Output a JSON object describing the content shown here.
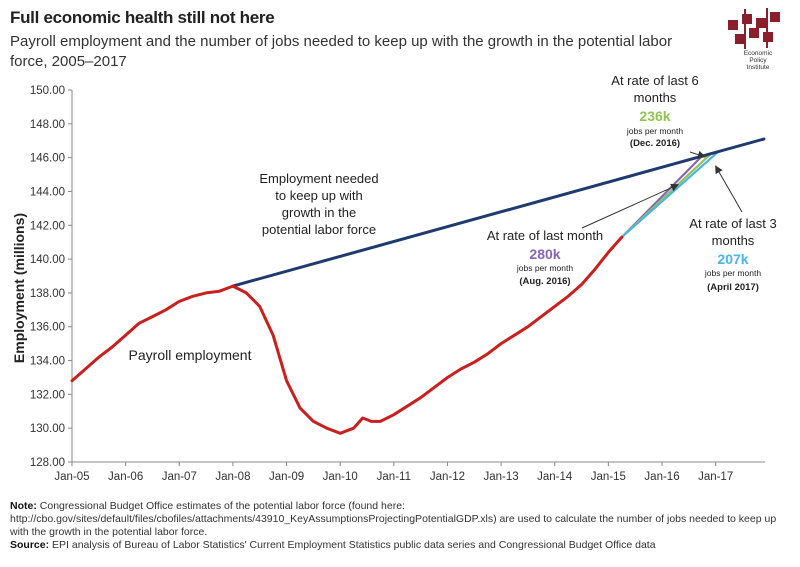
{
  "header": {
    "title": "Full economic health still not here",
    "subtitle": "Payroll employment and the number of jobs needed to keep up with the growth in the potential labor force, 2005–2017",
    "logo_text": [
      "Economic",
      "Policy",
      "Institute"
    ]
  },
  "colors": {
    "payroll": "#c8201f",
    "needed": "#1f3a6e",
    "last_month": "#8a63b4",
    "last_6_months": "#92c356",
    "last_3_months": "#4bb4e6",
    "logo": "#8b1e2d"
  },
  "chart_data": {
    "type": "line",
    "title": "Full economic health still not here",
    "ylabel": "Employment (millions)",
    "ylim": [
      128,
      150
    ],
    "yticks": [
      "128.00",
      "130.00",
      "132.00",
      "134.00",
      "136.00",
      "138.00",
      "140.00",
      "142.00",
      "144.00",
      "146.00",
      "148.00",
      "150.00"
    ],
    "xlim": [
      2005.0,
      2017.92
    ],
    "xticks": [
      "Jan-05",
      "Jan-06",
      "Jan-07",
      "Jan-08",
      "Jan-09",
      "Jan-10",
      "Jan-11",
      "Jan-12",
      "Jan-13",
      "Jan-14",
      "Jan-15",
      "Jan-16",
      "Jan-17"
    ],
    "series": [
      {
        "key": "payroll",
        "name": "Payroll employment",
        "x": [
          2005.0,
          2005.25,
          2005.5,
          2005.75,
          2006.0,
          2006.25,
          2006.5,
          2006.75,
          2007.0,
          2007.25,
          2007.5,
          2007.75,
          2008.0,
          2008.25,
          2008.5,
          2008.75,
          2009.0,
          2009.25,
          2009.5,
          2009.75,
          2010.0,
          2010.25,
          2010.42,
          2010.58,
          2010.75,
          2011.0,
          2011.25,
          2011.5,
          2011.75,
          2012.0,
          2012.25,
          2012.5,
          2012.75,
          2013.0,
          2013.25,
          2013.5,
          2013.75,
          2014.0,
          2014.25,
          2014.5,
          2014.75,
          2015.0,
          2015.25
        ],
        "y": [
          132.8,
          133.5,
          134.2,
          134.8,
          135.5,
          136.2,
          136.6,
          137.0,
          137.5,
          137.8,
          138.0,
          138.1,
          138.4,
          138.0,
          137.2,
          135.5,
          132.8,
          131.2,
          130.4,
          130.0,
          129.7,
          130.0,
          130.6,
          130.4,
          130.4,
          130.8,
          131.3,
          131.8,
          132.4,
          133.0,
          133.5,
          133.9,
          134.4,
          135.0,
          135.5,
          136.0,
          136.6,
          137.2,
          137.8,
          138.5,
          139.4,
          140.4,
          141.3
        ]
      },
      {
        "key": "needed",
        "name": "Employment needed to keep up with growth in the potential labor force",
        "x": [
          2008.0,
          2017.9
        ],
        "y": [
          138.4,
          147.1
        ]
      },
      {
        "key": "last_month",
        "name": "At rate of last month",
        "x": [
          2015.25,
          2016.75
        ],
        "y": [
          141.3,
          146.1
        ]
      },
      {
        "key": "last_6_months",
        "name": "At rate of last 6 months",
        "x": [
          2015.25,
          2016.9
        ],
        "y": [
          141.3,
          146.2
        ]
      },
      {
        "key": "last_3_months",
        "name": "At rate of last 3 months",
        "x": [
          2015.25,
          2017.05
        ],
        "y": [
          141.3,
          146.35
        ]
      }
    ],
    "annotations": {
      "needed_label": [
        "Employment needed",
        "to keep up with",
        "growth in the",
        "potential labor force"
      ],
      "payroll_label": "Payroll employment",
      "six_months": {
        "line1": "At rate of last 6",
        "line2": "months",
        "value": "236k",
        "unit": "jobs per month",
        "date": "(Dec. 2016)"
      },
      "last_month": {
        "line1": "At rate of last month",
        "value": "280k",
        "unit": "jobs per month",
        "date": "(Aug. 2016)"
      },
      "three_months": {
        "line1": "At rate of last 3",
        "line2": "months",
        "value": "207k",
        "unit": "jobs per month",
        "date": "(April 2017)"
      }
    }
  },
  "notes": {
    "note_label": "Note:",
    "note_text": "Congressional Budget Office estimates of the potential labor force (found here: http://cbo.gov/sites/default/files/cbofiles/attachments/43910_KeyAssumptionsProjectingPotentialGDP.xls) are used to calculate the number of jobs needed to keep up with the growth in the potential labor force.",
    "source_label": "Source:",
    "source_text": "EPI analysis of Bureau of Labor Statistics' Current Employment Statistics public data series and Congressional Budget Office data"
  }
}
